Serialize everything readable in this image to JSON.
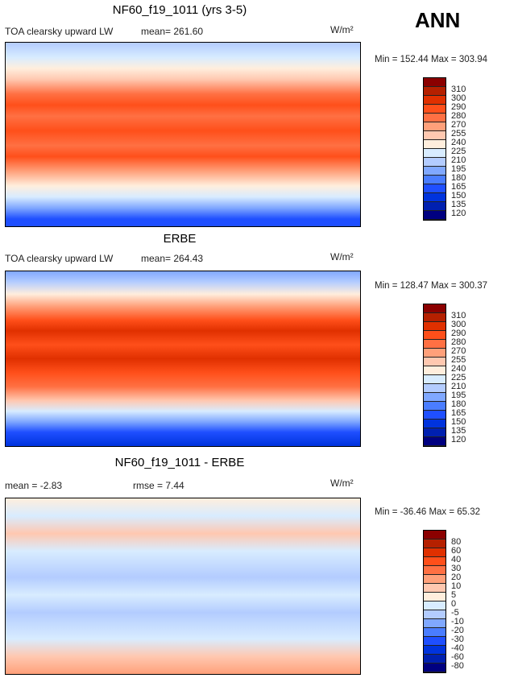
{
  "season": "ANN",
  "colors": [
    "#8b0000",
    "#b52000",
    "#e03000",
    "#ff4f1a",
    "#ff7043",
    "#ffa07a",
    "#ffc8b0",
    "#ffeedd",
    "#d8ecff",
    "#b3ccff",
    "#80a8ff",
    "#4a7dff",
    "#1f4fff",
    "#0033dd",
    "#0020b0",
    "#000080"
  ],
  "chart_data": [
    {
      "type": "heatmap",
      "title": "NF60_f19_1011 (yrs 3-5)",
      "variable": "TOA clearsky upward LW",
      "mean": "mean= 261.60",
      "units": "W/m²",
      "minmax": "Min = 152.44 Max = 303.94",
      "levels": [
        "310",
        "300",
        "290",
        "280",
        "270",
        "255",
        "240",
        "225",
        "210",
        "195",
        "180",
        "165",
        "150",
        "135",
        "120"
      ]
    },
    {
      "type": "heatmap",
      "title": "ERBE",
      "variable": "TOA clearsky upward LW",
      "mean": "mean= 264.43",
      "units": "W/m²",
      "minmax": "Min = 128.47 Max = 300.37",
      "levels": [
        "310",
        "300",
        "290",
        "280",
        "270",
        "255",
        "240",
        "225",
        "210",
        "195",
        "180",
        "165",
        "150",
        "135",
        "120"
      ]
    },
    {
      "type": "heatmap",
      "title": "NF60_f19_1011 - ERBE",
      "mean": "mean =  -2.83",
      "rmse": "rmse =   7.44",
      "units": "W/m²",
      "minmax": "Min = -36.46 Max =  65.32",
      "levels": [
        "80",
        "60",
        "40",
        "30",
        "20",
        "10",
        "5",
        "0",
        "-5",
        "-10",
        "-20",
        "-30",
        "-40",
        "-60",
        "-80"
      ]
    }
  ]
}
